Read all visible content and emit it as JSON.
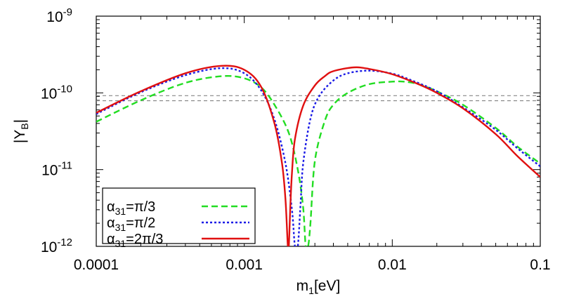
{
  "chart_data": {
    "type": "line",
    "title": "",
    "xlabel": "m",
    "xlabel_sub": "1",
    "xlabel_unit": "[eV]",
    "ylabel": "|Y",
    "ylabel_sub": "B",
    "ylabel_end": "|",
    "xscale": "log",
    "yscale": "log",
    "xlim": [
      0.0001,
      0.1
    ],
    "ylim": [
      1e-12,
      1e-09
    ],
    "x_ticks": [
      {
        "value": 0.0001,
        "label": "0.0001"
      },
      {
        "value": 0.001,
        "label": "0.001"
      },
      {
        "value": 0.01,
        "label": "0.01"
      },
      {
        "value": 0.1,
        "label": "0.1"
      }
    ],
    "y_ticks": [
      {
        "value": 1e-12,
        "base": "10",
        "exp": "-12"
      },
      {
        "value": 1e-11,
        "base": "10",
        "exp": "-11"
      },
      {
        "value": 1e-10,
        "base": "10",
        "exp": "-10"
      },
      {
        "value": 1e-09,
        "base": "10",
        "exp": "-9"
      }
    ],
    "grid": false,
    "legend_position": "bottom-left",
    "reference_lines": [
      {
        "y": 9.2e-11,
        "color": "#888888",
        "style": "dashed"
      },
      {
        "y": 7.9e-11,
        "color": "#888888",
        "style": "dashed"
      }
    ],
    "series": [
      {
        "name": "α31=π/3",
        "label_main": "α",
        "label_sub": "31",
        "label_rest": "=π/3",
        "color": "#22dd22",
        "style": "dashed",
        "x": [
          0.0001,
          0.0002,
          0.0004,
          0.0007,
          0.001,
          0.0013,
          0.0016,
          0.002,
          0.0023,
          0.0025,
          0.0026,
          0.0027,
          0.0028,
          0.003,
          0.0035,
          0.004,
          0.005,
          0.007,
          0.01,
          0.012,
          0.015,
          0.02,
          0.03,
          0.05,
          0.07,
          0.1
        ],
        "y": [
          4.2e-11,
          8e-11,
          1.35e-10,
          1.65e-10,
          1.55e-10,
          1.18e-10,
          7e-11,
          3e-11,
          1e-11,
          3.2e-12,
          1e-12,
          1e-12,
          2e-12,
          1.3e-11,
          4.3e-11,
          7e-11,
          1e-10,
          1.3e-10,
          1.4e-10,
          1.4e-10,
          1.3e-10,
          1.05e-10,
          7e-11,
          3.5e-11,
          2e-11,
          1.2e-11
        ]
      },
      {
        "name": "α31=π/2",
        "label_main": "α",
        "label_sub": "31",
        "label_rest": "=π/2",
        "color": "#1a1ae6",
        "style": "dotted",
        "x": [
          0.0001,
          0.0002,
          0.0004,
          0.0007,
          0.001,
          0.0013,
          0.0016,
          0.0019,
          0.0021,
          0.0022,
          0.0023,
          0.0024,
          0.0025,
          0.0028,
          0.0032,
          0.004,
          0.005,
          0.007,
          0.01,
          0.013,
          0.02,
          0.03,
          0.05,
          0.07,
          0.1
        ],
        "y": [
          5.3e-11,
          1.02e-10,
          1.7e-10,
          2.1e-10,
          1.8e-10,
          1.08e-10,
          4.5e-11,
          1.2e-11,
          3e-12,
          1e-12,
          1e-12,
          3.5e-12,
          1.2e-11,
          4.6e-11,
          9e-11,
          1.45e-10,
          1.8e-10,
          1.95e-10,
          1.78e-10,
          1.5e-10,
          1.05e-10,
          6.5e-11,
          3.3e-11,
          1.9e-11,
          1.1e-11
        ]
      },
      {
        "name": "α31=2π/3",
        "label_main": "α",
        "label_sub": "31",
        "label_rest": "=2π/3",
        "color": "#e01010",
        "style": "solid",
        "x": [
          0.0001,
          0.0002,
          0.0004,
          0.0007,
          0.001,
          0.0013,
          0.0016,
          0.0018,
          0.0019,
          0.00197,
          0.002,
          0.00205,
          0.0021,
          0.0022,
          0.0025,
          0.003,
          0.0035,
          0.004,
          0.0055,
          0.007,
          0.01,
          0.015,
          0.02,
          0.03,
          0.05,
          0.07,
          0.1
        ],
        "y": [
          5.5e-11,
          1.05e-10,
          1.8e-10,
          2.25e-10,
          2e-10,
          1.2e-10,
          4e-11,
          1.2e-11,
          4e-12,
          1e-12,
          1e-12,
          3.5e-12,
          9e-12,
          2.5e-11,
          6.8e-11,
          1.25e-10,
          1.65e-10,
          1.92e-10,
          2.15e-10,
          2.05e-10,
          1.75e-10,
          1.3e-10,
          1e-10,
          6.3e-11,
          2.9e-11,
          1.5e-11,
          8e-12
        ]
      }
    ]
  }
}
